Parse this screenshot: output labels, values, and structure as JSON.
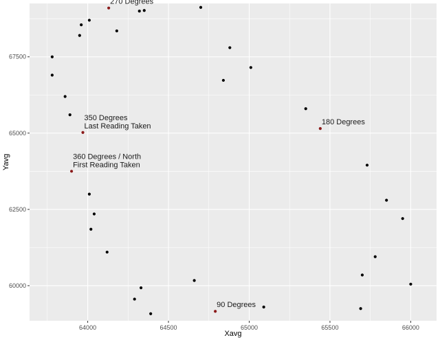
{
  "chart_data": {
    "type": "scatter",
    "title": "",
    "xlabel": "Xavg",
    "ylabel": "Yavg",
    "xlim": [
      63640,
      66160
    ],
    "ylim": [
      58850,
      69250
    ],
    "x_ticks": [
      64000,
      64500,
      65000,
      65500,
      66000
    ],
    "y_ticks": [
      60000,
      62500,
      65000,
      67500
    ],
    "grid": true,
    "colors": {
      "panel": "#ebebeb",
      "grid": "#ffffff",
      "point": "#000000",
      "highlight": "#8b1a1a"
    },
    "points": [
      {
        "x": 63780,
        "y": 67500
      },
      {
        "x": 63780,
        "y": 66900
      },
      {
        "x": 63860,
        "y": 66200
      },
      {
        "x": 63890,
        "y": 65600
      },
      {
        "x": 63950,
        "y": 68200
      },
      {
        "x": 63960,
        "y": 68550
      },
      {
        "x": 64010,
        "y": 68700
      },
      {
        "x": 64180,
        "y": 68350
      },
      {
        "x": 64320,
        "y": 69000
      },
      {
        "x": 64350,
        "y": 69020
      },
      {
        "x": 64700,
        "y": 69120
      },
      {
        "x": 64880,
        "y": 67800
      },
      {
        "x": 64840,
        "y": 66730
      },
      {
        "x": 65010,
        "y": 67150
      },
      {
        "x": 65350,
        "y": 65800
      },
      {
        "x": 65730,
        "y": 63950
      },
      {
        "x": 65850,
        "y": 62800
      },
      {
        "x": 65950,
        "y": 62200
      },
      {
        "x": 65780,
        "y": 60950
      },
      {
        "x": 65700,
        "y": 60350
      },
      {
        "x": 66000,
        "y": 60050
      },
      {
        "x": 65690,
        "y": 59250
      },
      {
        "x": 65090,
        "y": 59300
      },
      {
        "x": 64660,
        "y": 60170
      },
      {
        "x": 64330,
        "y": 59930
      },
      {
        "x": 64290,
        "y": 59560
      },
      {
        "x": 64390,
        "y": 59080
      },
      {
        "x": 64120,
        "y": 61100
      },
      {
        "x": 64020,
        "y": 61850
      },
      {
        "x": 64040,
        "y": 62350
      },
      {
        "x": 64010,
        "y": 63000
      }
    ],
    "highlighted_points": [
      {
        "x": 64130,
        "y": 69100,
        "label": "270 Degrees"
      },
      {
        "x": 65440,
        "y": 65150,
        "label": "180 Degrees"
      },
      {
        "x": 63970,
        "y": 65020,
        "label": "350 Degrees\nLast Reading Taken"
      },
      {
        "x": 63900,
        "y": 63750,
        "label": "360 Degrees / North\nFirst Reading Taken"
      },
      {
        "x": 64790,
        "y": 59160,
        "label": "90 Degrees"
      }
    ]
  }
}
